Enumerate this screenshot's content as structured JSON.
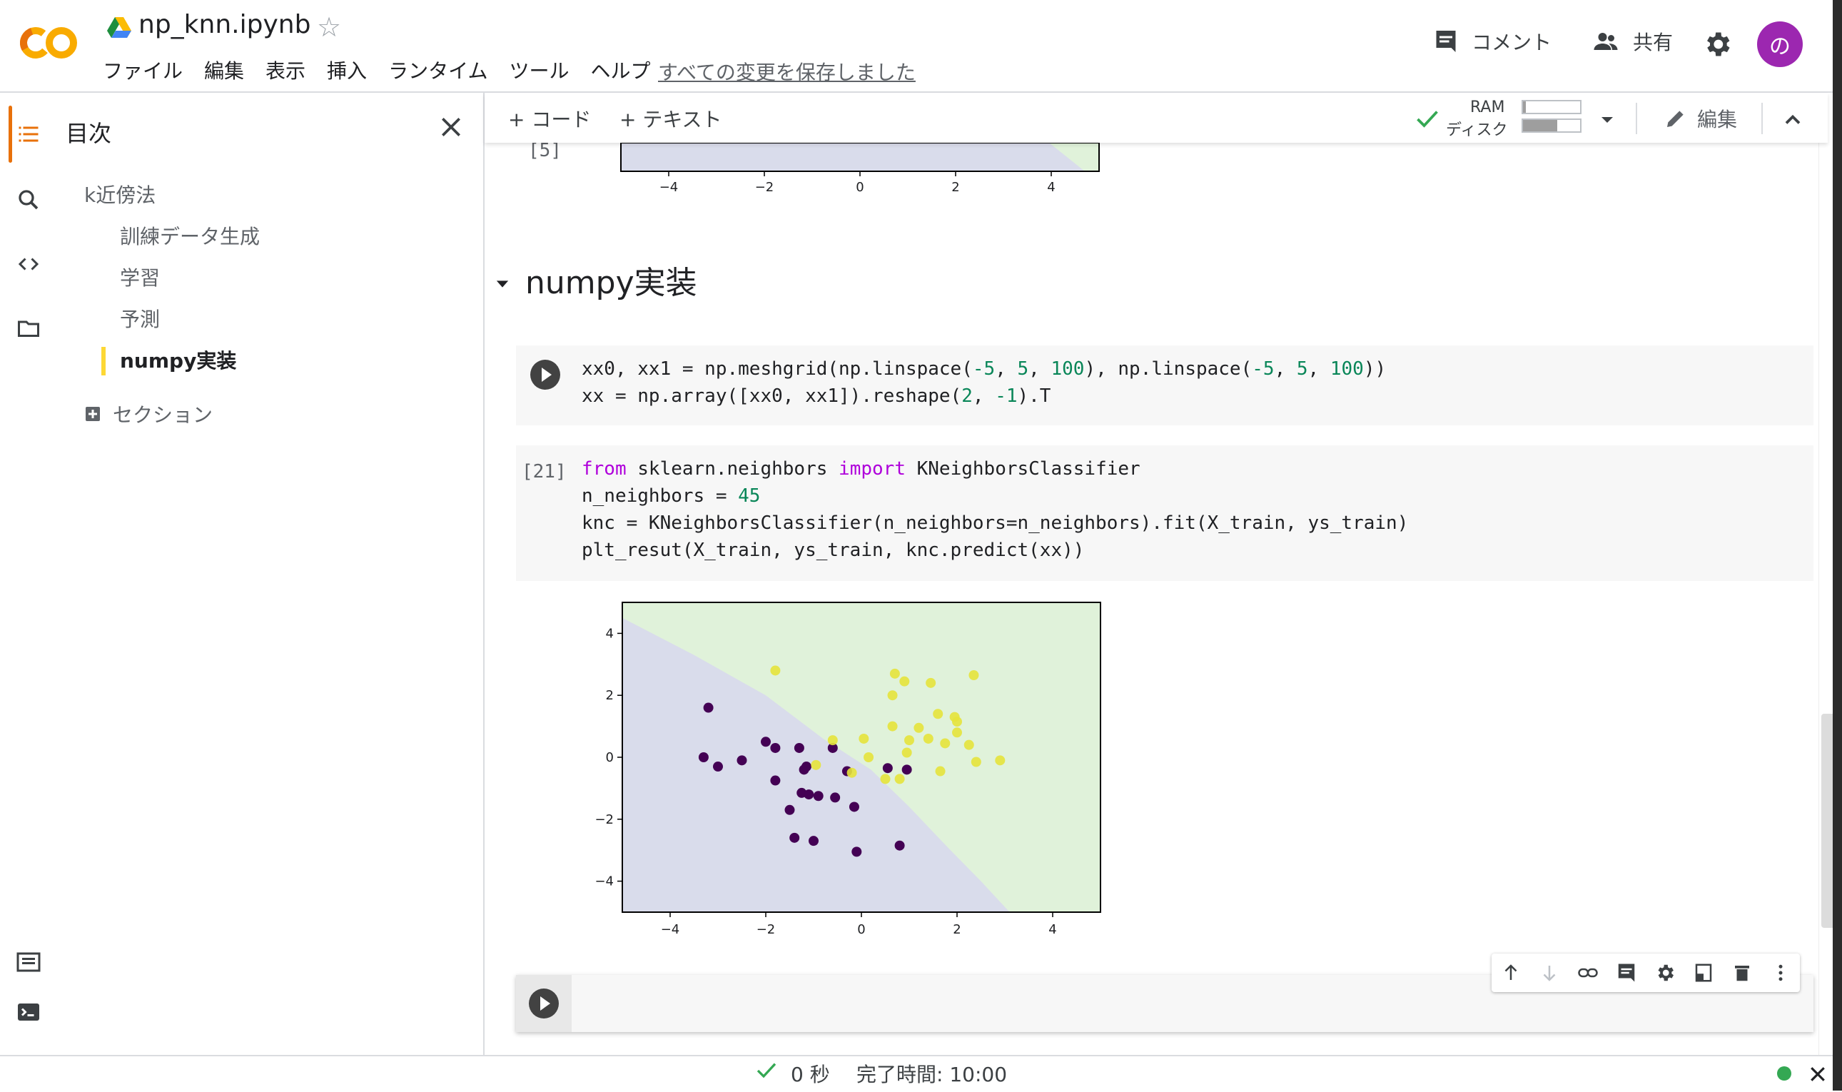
{
  "header": {
    "filename": "np_knn.ipynb",
    "menu": [
      "ファイル",
      "編集",
      "表示",
      "挿入",
      "ランタイム",
      "ツール",
      "ヘルプ"
    ],
    "saved_message": "すべての変更を保存しました",
    "comment_label": "コメント",
    "share_label": "共有",
    "avatar_letter": "の"
  },
  "toc": {
    "title": "目次",
    "items": [
      {
        "label": "k近傍法",
        "level": 1
      },
      {
        "label": "訓練データ生成",
        "level": 2
      },
      {
        "label": "学習",
        "level": 2
      },
      {
        "label": "予測",
        "level": 2
      },
      {
        "label": "numpy実装",
        "level": 2,
        "active": true
      }
    ],
    "add_section_label": "セクション"
  },
  "toolbar": {
    "add_code": "+ コード",
    "add_text": "+ テキスト",
    "ram_label": "RAM",
    "disk_label": "ディスク",
    "ram_level": 0.05,
    "disk_level": 0.6,
    "edit_label": "編集"
  },
  "notebook": {
    "prev_cell_count": "[5]",
    "section_heading": "numpy実装",
    "cell1_count": "[21]"
  },
  "chart_data": {
    "type": "scatter",
    "xlim": [
      -5,
      5
    ],
    "ylim": [
      -5,
      5
    ],
    "xticks": [
      -4,
      -2,
      0,
      2,
      4
    ],
    "yticks": [
      4,
      2,
      0,
      -2,
      -4
    ],
    "grid": false,
    "colors": {
      "class0_region": "#d9dceb",
      "class1_region": "#e0f2da",
      "class0": "#440154",
      "class1": "#e6e33b"
    },
    "boundary": [
      [
        -5,
        4.5
      ],
      [
        -3.5,
        3.3
      ],
      [
        -2,
        2.0
      ],
      [
        -0.8,
        0.6
      ],
      [
        0.2,
        -0.4
      ],
      [
        1.0,
        -1.6
      ],
      [
        1.8,
        -2.9
      ],
      [
        2.5,
        -4.0
      ],
      [
        3.1,
        -5
      ]
    ],
    "series": [
      {
        "class": 0,
        "points": [
          [
            -3.2,
            1.6
          ],
          [
            -3.3,
            0.0
          ],
          [
            -3.0,
            -0.3
          ],
          [
            -2.5,
            -0.1
          ],
          [
            -2.0,
            0.5
          ],
          [
            -1.8,
            0.3
          ],
          [
            -1.8,
            -0.75
          ],
          [
            -1.5,
            -1.7
          ],
          [
            -1.3,
            0.3
          ],
          [
            -1.2,
            -0.4
          ],
          [
            -1.15,
            -0.3
          ],
          [
            -1.25,
            -1.15
          ],
          [
            -1.1,
            -1.2
          ],
          [
            -1.4,
            -2.6
          ],
          [
            -1.0,
            -2.7
          ],
          [
            -0.6,
            0.3
          ],
          [
            -0.55,
            -1.3
          ],
          [
            -0.3,
            -0.45
          ],
          [
            -0.15,
            -1.6
          ],
          [
            -0.1,
            -3.05
          ],
          [
            0.55,
            -0.35
          ],
          [
            0.95,
            -0.4
          ],
          [
            0.8,
            -2.85
          ],
          [
            -0.9,
            -1.25
          ]
        ]
      },
      {
        "class": 1,
        "points": [
          [
            -1.8,
            2.8
          ],
          [
            -0.95,
            -0.25
          ],
          [
            -0.6,
            0.55
          ],
          [
            -0.2,
            -0.5
          ],
          [
            0.05,
            0.6
          ],
          [
            0.15,
            0.0
          ],
          [
            0.7,
            2.7
          ],
          [
            0.9,
            2.45
          ],
          [
            1.45,
            2.4
          ],
          [
            2.35,
            2.65
          ],
          [
            0.65,
            2.0
          ],
          [
            0.65,
            1.0
          ],
          [
            1.6,
            1.4
          ],
          [
            1.2,
            0.95
          ],
          [
            1.95,
            1.3
          ],
          [
            2.0,
            1.15
          ],
          [
            0.95,
            0.15
          ],
          [
            0.8,
            -0.7
          ],
          [
            1.4,
            0.6
          ],
          [
            1.0,
            0.55
          ],
          [
            1.75,
            0.45
          ],
          [
            2.0,
            0.8
          ],
          [
            2.25,
            0.4
          ],
          [
            2.4,
            -0.15
          ],
          [
            1.65,
            -0.45
          ],
          [
            2.9,
            -0.1
          ],
          [
            0.5,
            -0.7
          ]
        ]
      }
    ]
  },
  "status": {
    "elapsed": "0 秒",
    "completed": "完了時間: 10:00"
  }
}
